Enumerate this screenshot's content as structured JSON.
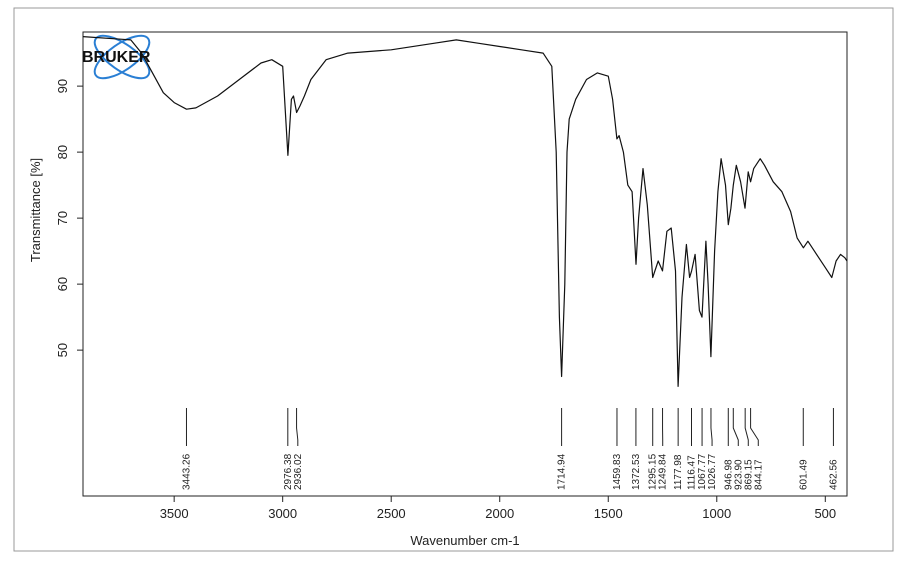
{
  "chart_data": {
    "type": "line",
    "logo": "BRUKER",
    "x_label": "Wavenumber cm-1",
    "y_label": "Transmittance [%]",
    "xlim": [
      3920,
      400
    ],
    "ylim": [
      27.9,
      98.2
    ],
    "xticks": [
      3500,
      3000,
      2500,
      2000,
      1500,
      1000,
      500
    ],
    "yticks": [
      50,
      60,
      70,
      80,
      90
    ],
    "series": [
      {
        "name": "spectrum",
        "color": "#111111",
        "x": [
          3920,
          3700,
          3650,
          3600,
          3550,
          3500,
          3443,
          3400,
          3300,
          3200,
          3100,
          3050,
          3000,
          2976,
          2960,
          2950,
          2936,
          2920,
          2900,
          2870,
          2800,
          2700,
          2500,
          2300,
          2200,
          2100,
          2000,
          1900,
          1800,
          1760,
          1740,
          1725,
          1715,
          1700,
          1690,
          1680,
          1650,
          1600,
          1550,
          1500,
          1480,
          1460,
          1450,
          1430,
          1410,
          1390,
          1372,
          1360,
          1340,
          1320,
          1295,
          1270,
          1250,
          1230,
          1210,
          1190,
          1178,
          1160,
          1140,
          1125,
          1116,
          1100,
          1080,
          1068,
          1050,
          1040,
          1027,
          1010,
          995,
          980,
          960,
          947,
          935,
          924,
          910,
          890,
          870,
          855,
          844,
          830,
          800,
          780,
          740,
          700,
          660,
          630,
          601,
          580,
          550,
          500,
          470,
          450,
          430,
          410,
          400
        ],
        "values": [
          97.5,
          97,
          95,
          92,
          89,
          87.5,
          86.5,
          86.7,
          88.5,
          91,
          93.5,
          94,
          93,
          79.5,
          88,
          88.5,
          86,
          87,
          88.5,
          91,
          94,
          95,
          95.5,
          96.5,
          97,
          96.5,
          96,
          95.5,
          95,
          93,
          80,
          55,
          46,
          60,
          80,
          85,
          88,
          91,
          92,
          91.5,
          88,
          82,
          82.5,
          80,
          75,
          74,
          63,
          70,
          77.5,
          72,
          61,
          63.5,
          62,
          68,
          68.5,
          62,
          44.5,
          58,
          66,
          61,
          62,
          64.5,
          56,
          55,
          66.5,
          60,
          49,
          65,
          74,
          79,
          75,
          69,
          71.5,
          75,
          78,
          75.5,
          71.5,
          77,
          75.5,
          77.5,
          79,
          78,
          75.5,
          74,
          71,
          67,
          65.5,
          66.5,
          65,
          62.5,
          61,
          63.5,
          64.5,
          64,
          63.5
        ]
      }
    ],
    "peaks": [
      {
        "value": 3443.26,
        "label": "3443.26"
      },
      {
        "value": 2976.38,
        "label": "2976.38"
      },
      {
        "value": 2936.02,
        "label": "2936.02"
      },
      {
        "value": 1714.94,
        "label": "1714.94"
      },
      {
        "value": 1459.83,
        "label": "1459.83"
      },
      {
        "value": 1372.53,
        "label": "1372.53"
      },
      {
        "value": 1295.15,
        "label": "1295.15"
      },
      {
        "value": 1249.84,
        "label": "1249.84"
      },
      {
        "value": 1177.98,
        "label": "1177.98"
      },
      {
        "value": 1116.47,
        "label": "1116.47"
      },
      {
        "value": 1067.77,
        "label": "1067.77"
      },
      {
        "value": 1026.77,
        "label": "1026.77"
      },
      {
        "value": 946.98,
        "label": "946.98"
      },
      {
        "value": 923.9,
        "label": "923.90"
      },
      {
        "value": 869.15,
        "label": "869.15"
      },
      {
        "value": 844.17,
        "label": "844.17"
      },
      {
        "value": 601.49,
        "label": "601.49"
      },
      {
        "value": 462.56,
        "label": "462.56"
      }
    ]
  }
}
